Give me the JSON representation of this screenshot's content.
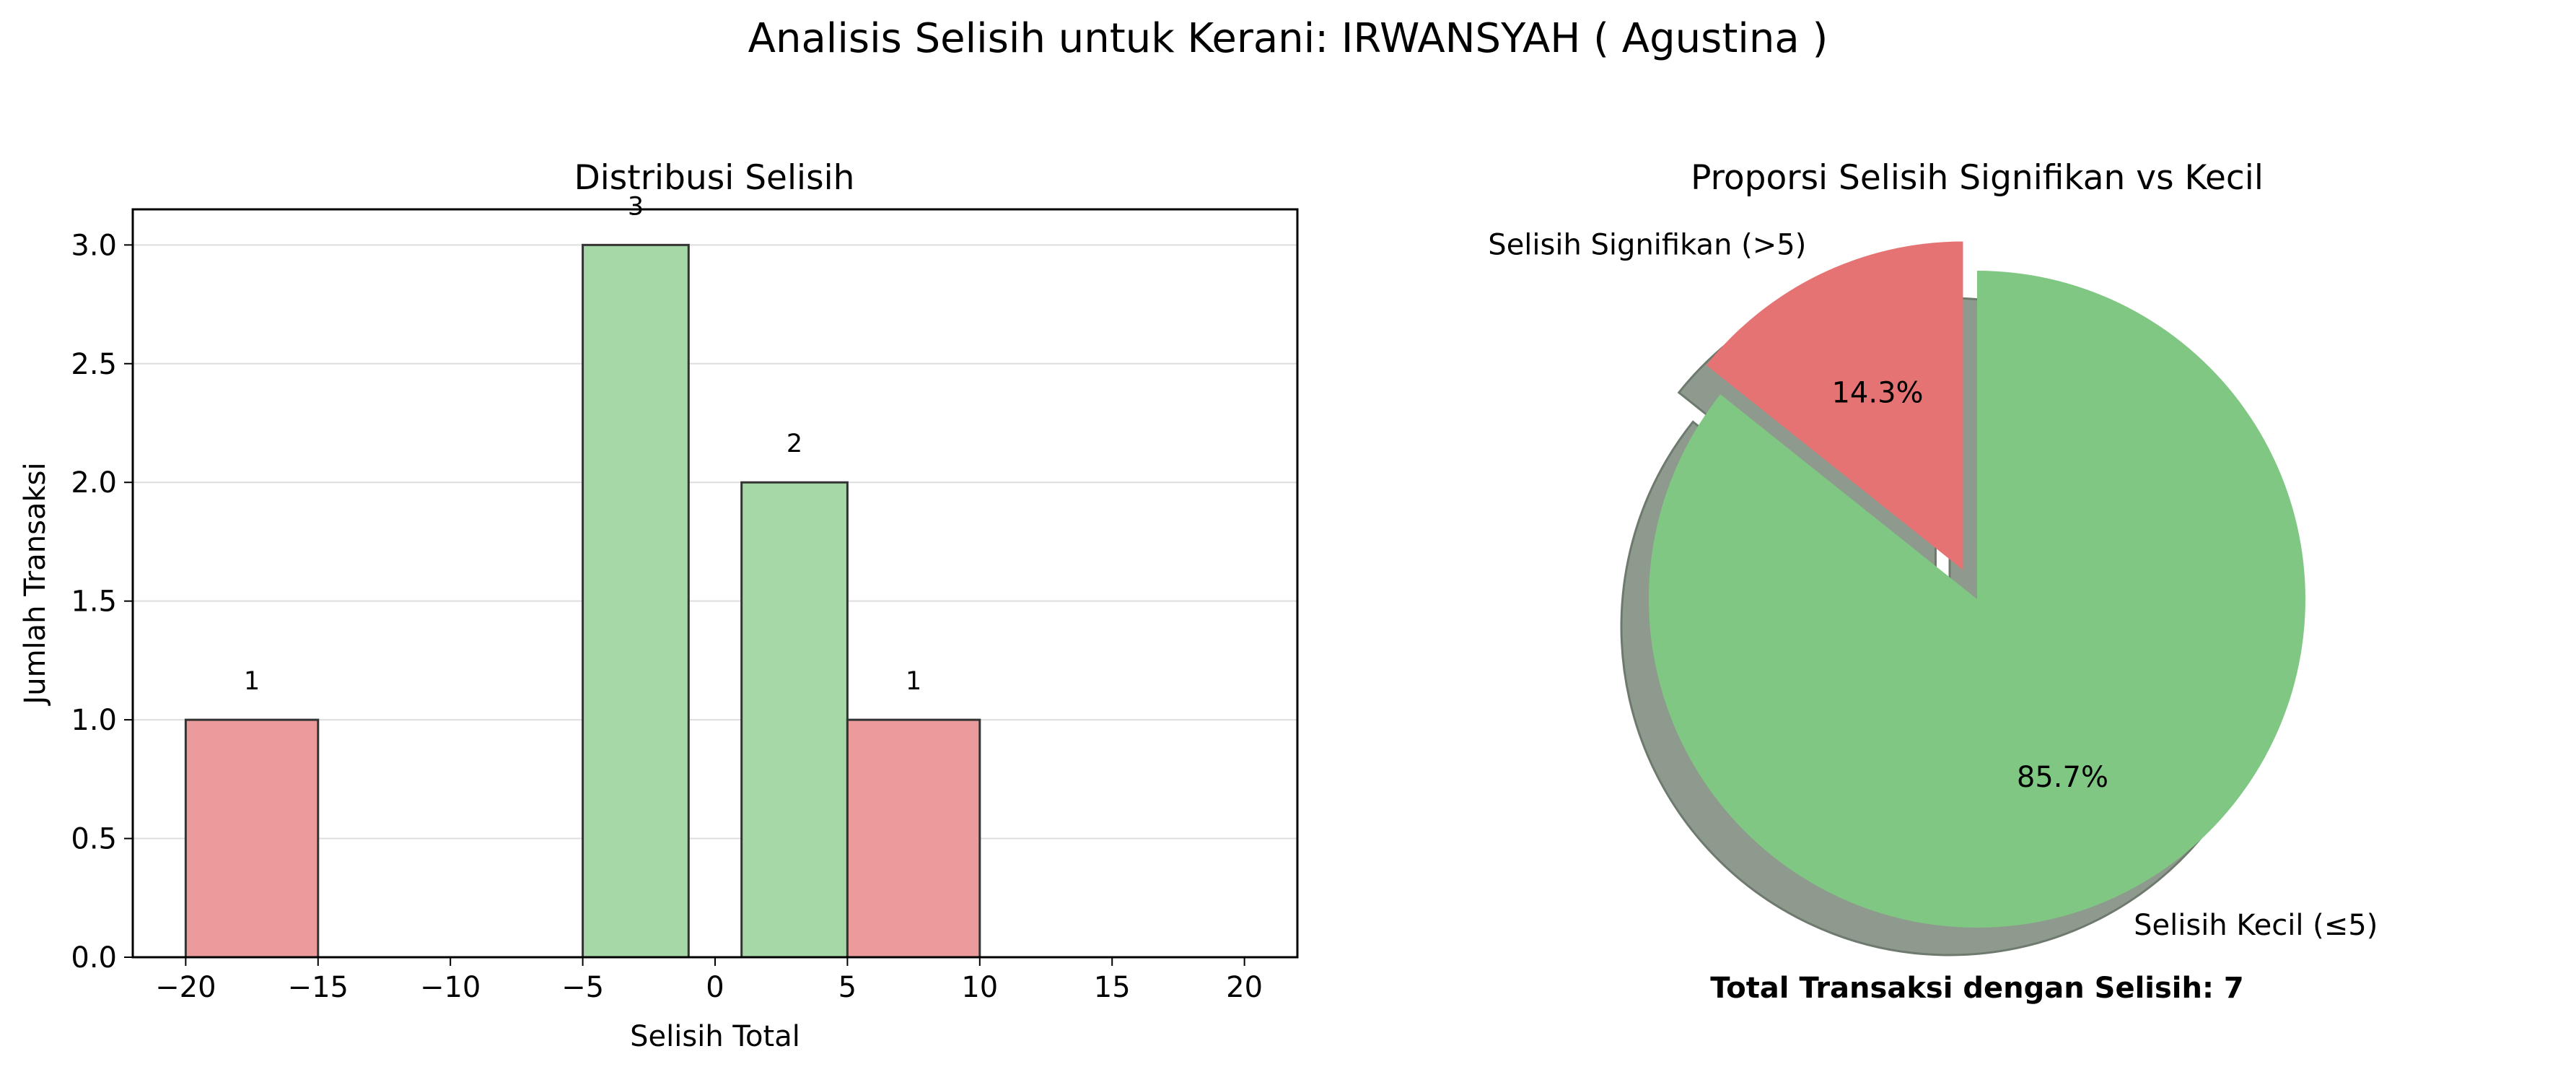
{
  "figure_title": "Analisis Selisih untuk Kerani: IRWANSYAH ( Agustina )",
  "colors": {
    "significant_bar": "#eb9b9c",
    "small_bar": "#a6d8a7",
    "significant_slice": "#e57373",
    "small_slice": "#81c784",
    "shadow": "#8f9a8e"
  },
  "chart_data": [
    {
      "type": "bar",
      "title": "Distribusi Selisih",
      "xlabel": "Selisih Total",
      "ylabel": "Jumlah Transaksi",
      "xlim": [
        -22,
        22
      ],
      "ylim": [
        0,
        3.15
      ],
      "xticks": [
        -20,
        -15,
        -10,
        -5,
        0,
        5,
        10,
        15,
        20
      ],
      "xtick_labels": [
        "−20",
        "−15",
        "−10",
        "−5",
        "0",
        "5",
        "10",
        "15",
        "20"
      ],
      "yticks": [
        0.0,
        0.5,
        1.0,
        1.5,
        2.0,
        2.5,
        3.0
      ],
      "ytick_labels": [
        "0.0",
        "0.5",
        "1.0",
        "1.5",
        "2.0",
        "2.5",
        "3.0"
      ],
      "grid": "y",
      "bars": [
        {
          "x_start": -20,
          "x_end": -15,
          "value": 1,
          "label": "1",
          "category": "significant"
        },
        {
          "x_start": -5,
          "x_end": -1,
          "value": 3,
          "label": "3",
          "category": "small"
        },
        {
          "x_start": 1,
          "x_end": 5,
          "value": 2,
          "label": "2",
          "category": "small"
        },
        {
          "x_start": 5,
          "x_end": 10,
          "value": 1,
          "label": "1",
          "category": "significant"
        }
      ]
    },
    {
      "type": "pie",
      "title": "Proporsi Selisih Signifikan vs Kecil",
      "slices": [
        {
          "label": "Selisih Signifikan (>5)",
          "value": 1,
          "percent_label": "14.3%",
          "category": "significant",
          "exploded": true
        },
        {
          "label": "Selisih Kecil (≤5)",
          "value": 6,
          "percent_label": "85.7%",
          "category": "small",
          "exploded": false
        }
      ],
      "start_angle_deg": 90,
      "shadow": true
    }
  ],
  "total_text": "Total Transaksi dengan Selisih: 7"
}
